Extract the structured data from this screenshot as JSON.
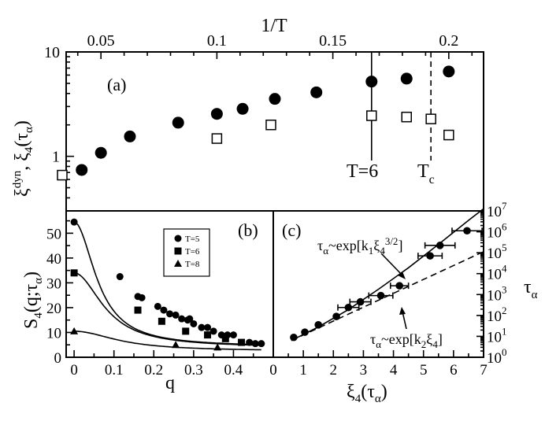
{
  "chart_data": [
    {
      "panel": "(a)",
      "type": "scatter",
      "xlabel": "1/T",
      "ylabel_base": "ξ",
      "ylabel_sup": "dyn",
      "ylabel_sep": ", ",
      "ylabel_2a": "ξ",
      "ylabel_2sub": "4",
      "ylabel_2b": "(τ",
      "ylabel_2sub2": "α",
      "ylabel_2c": ")",
      "xlim": [
        0.035,
        0.215
      ],
      "ylim": [
        0.3,
        10
      ],
      "yscale": "log",
      "xticks": [
        {
          "v": 0.05,
          "l": "0.05"
        },
        {
          "v": 0.1,
          "l": "0.1"
        },
        {
          "v": 0.15,
          "l": "0.15"
        },
        {
          "v": 0.2,
          "l": "0.2"
        }
      ],
      "yticks": [
        {
          "v": 1,
          "l": "1"
        },
        {
          "v": 10,
          "l": "10"
        }
      ],
      "series": [
        {
          "name": "xi_dyn",
          "marker": "filled-circle",
          "x": [
            0.0417,
            0.05,
            0.0625,
            0.0833,
            0.1,
            0.1111,
            0.125,
            0.1429,
            0.1667,
            0.1818,
            0.2
          ],
          "y": [
            0.74,
            1.08,
            1.55,
            2.1,
            2.55,
            2.85,
            3.55,
            4.1,
            5.2,
            5.55,
            6.5
          ]
        },
        {
          "name": "xi_4",
          "marker": "open-square",
          "x": [
            0.0333,
            0.1,
            0.1233,
            0.1667,
            0.1818,
            0.1923,
            0.2
          ],
          "y": [
            0.66,
            1.48,
            2.0,
            2.45,
            2.38,
            2.28,
            1.6
          ]
        }
      ],
      "vlines": [
        {
          "x": 0.1667,
          "style": "solid",
          "label": "T=6"
        },
        {
          "x": 0.1923,
          "style": "dashed",
          "label": "T",
          "label_sub": "c"
        }
      ]
    },
    {
      "panel": "(b)",
      "type": "scatter",
      "xlabel": "q",
      "ylabel_a": "S",
      "ylabel_sub": "4",
      "ylabel_b": "(q;τ",
      "ylabel_sub2": "α",
      "ylabel_c": ")",
      "xlim": [
        -0.02,
        0.5
      ],
      "ylim": [
        0,
        59
      ],
      "xticks": [
        {
          "v": 0,
          "l": "0"
        },
        {
          "v": 0.1,
          "l": "0.1"
        },
        {
          "v": 0.2,
          "l": "0.2"
        },
        {
          "v": 0.3,
          "l": "0.3"
        },
        {
          "v": 0.4,
          "l": "0.4"
        }
      ],
      "yticks": [
        {
          "v": 0,
          "l": "0"
        },
        {
          "v": 10,
          "l": "10"
        },
        {
          "v": 20,
          "l": "20"
        },
        {
          "v": 30,
          "l": "30"
        },
        {
          "v": 40,
          "l": "40"
        },
        {
          "v": 50,
          "l": "50"
        }
      ],
      "legend": [
        "T=5",
        "T=6",
        "T=8"
      ],
      "series": [
        {
          "name": "T=5",
          "marker": "circle",
          "x": [
            0.0,
            0.115,
            0.16,
            0.17,
            0.21,
            0.225,
            0.24,
            0.255,
            0.27,
            0.285,
            0.29,
            0.3,
            0.32,
            0.335,
            0.35,
            0.37,
            0.385,
            0.4,
            0.44,
            0.455,
            0.47
          ],
          "y": [
            54.5,
            32.5,
            24.5,
            24,
            20.5,
            19,
            17.5,
            17,
            15.5,
            15,
            15.5,
            13.5,
            12,
            12,
            10.5,
            9,
            9,
            9,
            6,
            5.5,
            5.5
          ],
          "fit": {
            "kind": "ornstein-zernike",
            "A": 54.5,
            "xi": 5.3,
            "b": 4.2
          }
        },
        {
          "name": "T=6",
          "marker": "square",
          "x": [
            0.0,
            0.16,
            0.22,
            0.28,
            0.335,
            0.38,
            0.42
          ],
          "y": [
            34,
            19,
            14.5,
            10.5,
            9,
            7.5,
            6
          ],
          "fit": {
            "kind": "ornstein-zernike",
            "A": 34,
            "xi": 4.0,
            "b": 3.9
          }
        },
        {
          "name": "T=8",
          "marker": "triangle",
          "x": [
            0.0,
            0.255,
            0.36
          ],
          "y": [
            10.5,
            5,
            4
          ],
          "fit": {
            "kind": "ornstein-zernike",
            "A": 10.5,
            "xi": 2.7,
            "b": 2.5
          }
        }
      ]
    },
    {
      "panel": "(c)",
      "type": "scatter",
      "xlabel_a": "ξ",
      "xlabel_sub": "4",
      "xlabel_b": "(τ",
      "xlabel_sub2": "α",
      "xlabel_c": ")",
      "ylabel": "τ",
      "ylabel_sub": "α",
      "xlim": [
        0,
        7
      ],
      "ylim_log10": [
        0,
        7
      ],
      "yscale": "log",
      "xticks": [
        {
          "v": 0,
          "l": "0"
        },
        {
          "v": 1,
          "l": "1"
        },
        {
          "v": 2,
          "l": "2"
        },
        {
          "v": 3,
          "l": "3"
        },
        {
          "v": 4,
          "l": "4"
        },
        {
          "v": 5,
          "l": "5"
        },
        {
          "v": 6,
          "l": "6"
        },
        {
          "v": 7,
          "l": "7"
        }
      ],
      "yticks_pow": [
        0,
        1,
        2,
        3,
        4,
        5,
        6,
        7
      ],
      "ytick_base": "10",
      "series": [
        {
          "name": "data",
          "marker": "filled-circle",
          "x": [
            0.68,
            1.05,
            1.5,
            2.1,
            2.5,
            2.9,
            3.58,
            4.2,
            5.22,
            5.55,
            6.45
          ],
          "log10_y": [
            0.95,
            1.2,
            1.55,
            1.95,
            2.38,
            2.65,
            2.95,
            3.42,
            4.85,
            5.35,
            6.05
          ],
          "xerr": [
            0,
            0,
            0,
            0,
            0.35,
            0.35,
            0.4,
            0.3,
            0.4,
            0.5,
            0.5
          ]
        },
        {
          "name": "fit_power",
          "style": "solid",
          "label_a": "τ",
          "label_asub": "α",
          "label_b": "~exp[k",
          "label_bsub": "1",
          "label_c": "ξ",
          "label_csub": "4",
          "label_csup": "3/2",
          "label_d": "]",
          "x": [
            0.6,
            1.5,
            2.5,
            3.5,
            4.5,
            5.5,
            6.5,
            7.0
          ],
          "log10_y": [
            0.8,
            1.45,
            2.28,
            3.25,
            4.28,
            5.4,
            6.55,
            7.1
          ]
        },
        {
          "name": "fit_linear",
          "style": "dashed",
          "label_a": "τ",
          "label_asub": "α",
          "label_b": "~exp[k",
          "label_bsub": "2",
          "label_c": "ξ",
          "label_csub": "4",
          "label_d": "]",
          "x": [
            0.6,
            7.0
          ],
          "log10_y": [
            0.8,
            5.05
          ]
        }
      ]
    }
  ]
}
